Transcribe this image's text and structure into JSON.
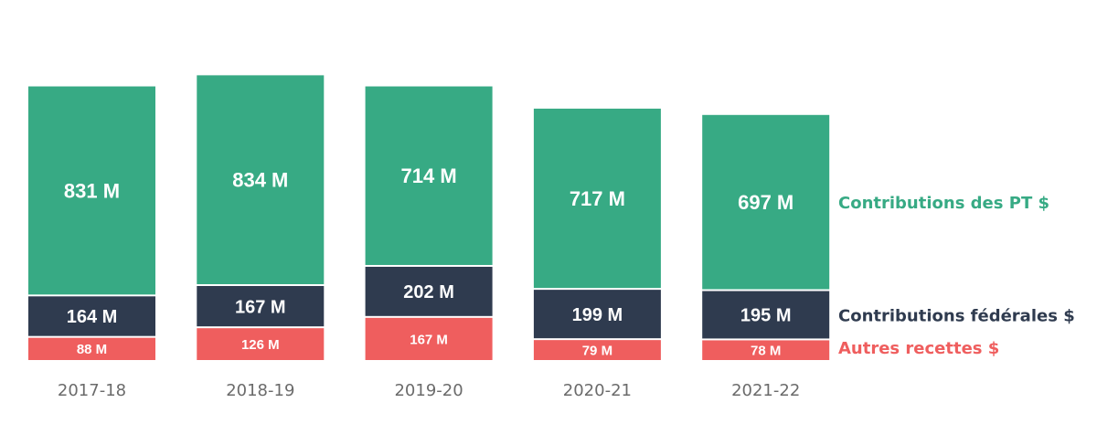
{
  "chart_data": {
    "type": "bar",
    "stacked": true,
    "categories": [
      "2017-18",
      "2018-19",
      "2019-20",
      "2020-21",
      "2021-22"
    ],
    "series": [
      {
        "name": "Autres recettes $",
        "values": [
          88,
          126,
          167,
          79,
          78
        ],
        "labels": [
          "88 M",
          "126 M",
          "167 M",
          "79 M",
          "78 M"
        ],
        "color": "#ef5e5e"
      },
      {
        "name": "Contributions fédérales $",
        "values": [
          164,
          167,
          202,
          199,
          195
        ],
        "labels": [
          "164 M",
          "167 M",
          "202 M",
          "199 M",
          "195 M"
        ],
        "color": "#2f3b4f"
      },
      {
        "name": "Contributions des PT $",
        "values": [
          831,
          834,
          714,
          717,
          697
        ],
        "labels": [
          "831 M",
          "834 M",
          "714 M",
          "717 M",
          "697 M"
        ],
        "color": "#37aa84"
      }
    ],
    "legend_placement": "right",
    "grid": false,
    "axes_visible": false
  }
}
